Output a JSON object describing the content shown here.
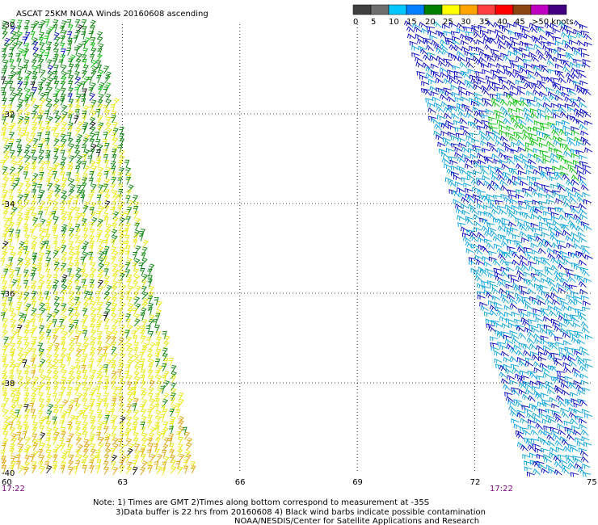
{
  "title": "ASCAT 25KM NOAA Winds 20160608 ascending",
  "legend": {
    "labels": [
      "0",
      "5",
      "10",
      "15",
      "20",
      "25",
      "30",
      "35",
      "40",
      "45",
      ">50 knots"
    ],
    "colors": [
      "#404040",
      "#6e6e6e",
      "#00c8ff",
      "#0080ff",
      "#008000",
      "#ffff00",
      "#ffa500",
      "#ff4040",
      "#ff0000",
      "#8b4513",
      "#c000c0",
      "#400080"
    ]
  },
  "map": {
    "lon_range": [
      60,
      75
    ],
    "lat_range": [
      -30,
      -40
    ],
    "lon_ticks": [
      "60",
      "63",
      "66",
      "69",
      "72",
      "75"
    ],
    "lat_ticks": [
      "-30",
      "-32",
      "-34",
      "-36",
      "-38",
      "-40"
    ],
    "grid": "dotted",
    "pass_times": [
      "17:22",
      "17:22"
    ]
  },
  "notes": [
    "Note: 1) Times are GMT 2)Times along bottom correspond to measurement at -35S",
    "3)Data buffer is 22 hrs from 20160608 4) Black wind barbs indicate possible contamination",
    "NOAA/NESDIS/Center for Satellite Applications and Research"
  ],
  "barb_colors": {
    "green": "#008000",
    "lightgreen": "#00c000",
    "yellow": "#e8e800",
    "orange": "#e0a000",
    "blue": "#0000c0",
    "cyan": "#00a0e0",
    "black": "#000000"
  }
}
